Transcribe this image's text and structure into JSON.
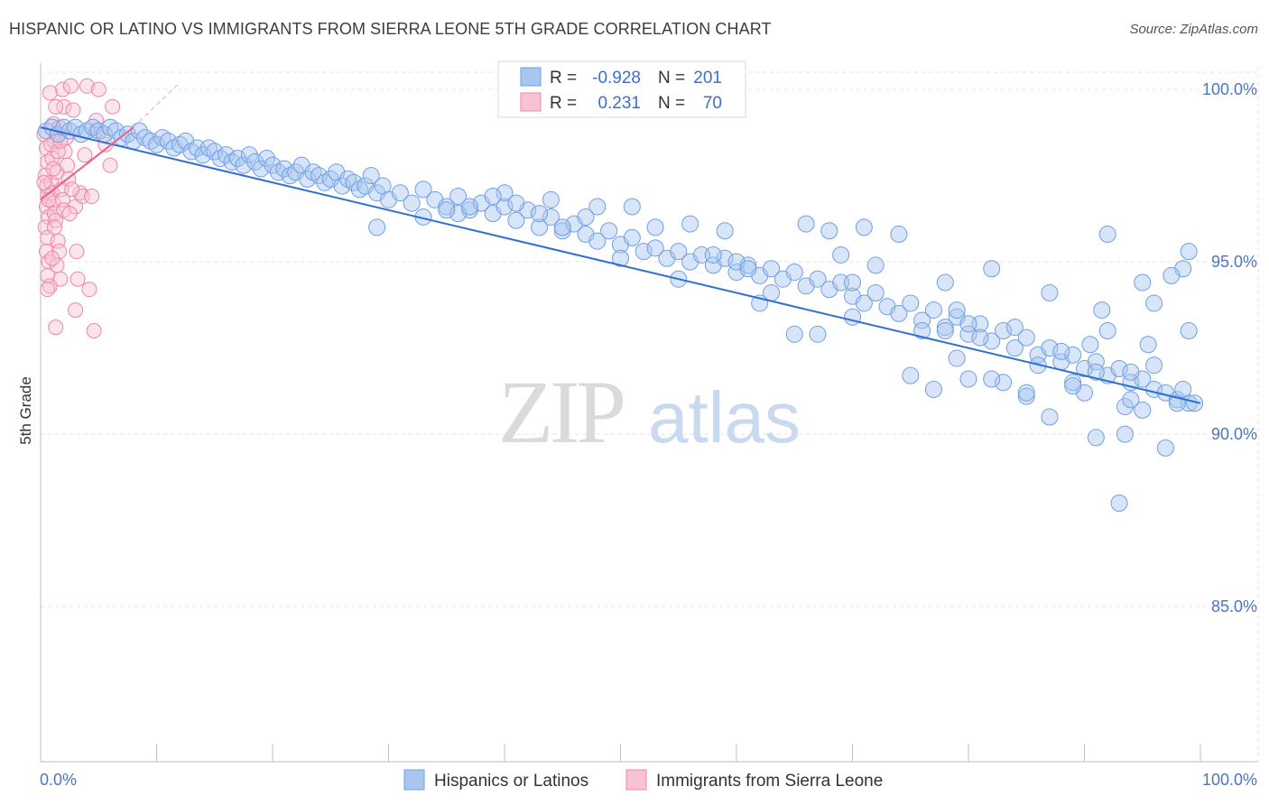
{
  "title": "HISPANIC OR LATINO VS IMMIGRANTS FROM SIERRA LEONE 5TH GRADE CORRELATION CHART",
  "source": "Source: ZipAtlas.com",
  "watermark": {
    "zip": "ZIP",
    "atlas": "atlas"
  },
  "colors": {
    "blue": "#6f9fe6",
    "blue_fill": "#a9c6f0",
    "blue_line": "#2f6fd2",
    "pink": "#ef86a8",
    "pink_fill": "#f7c3d4",
    "pink_line": "#e9608c",
    "tick_text": "#4a76c2"
  },
  "legend": {
    "r_label": "R =",
    "n_label": "N =",
    "rows": [
      {
        "r": "-0.928",
        "n": "201"
      },
      {
        "r": "0.231",
        "n": "70"
      }
    ]
  },
  "chart_data": {
    "type": "scatter",
    "xlabel": "",
    "ylabel": "5th Grade",
    "x_tick_labels": [
      "0.0%",
      "100.0%"
    ],
    "y_tick_labels": [
      "100.0%",
      "95.0%",
      "90.0%",
      "85.0%"
    ],
    "y_ticks": [
      100,
      95,
      90,
      85
    ],
    "xlim": [
      0,
      100
    ],
    "ylim": [
      80.5,
      100.5
    ],
    "grid": true,
    "legend_position": "top-center",
    "series": [
      {
        "name": "Hispanics or Latinos",
        "color": "#6f9fe6",
        "trend": {
          "x": [
            0,
            100
          ],
          "y": [
            98.9,
            90.9
          ]
        },
        "points": [
          [
            0.5,
            98.8
          ],
          [
            1,
            98.9
          ],
          [
            1.5,
            98.7
          ],
          [
            2,
            98.9
          ],
          [
            2.5,
            98.8
          ],
          [
            3,
            98.9
          ],
          [
            3.5,
            98.7
          ],
          [
            4,
            98.8
          ],
          [
            4.5,
            98.9
          ],
          [
            5,
            98.8
          ],
          [
            5.5,
            98.7
          ],
          [
            6,
            98.9
          ],
          [
            6.5,
            98.8
          ],
          [
            7,
            98.6
          ],
          [
            7.5,
            98.7
          ],
          [
            8,
            98.5
          ],
          [
            8.5,
            98.8
          ],
          [
            9,
            98.6
          ],
          [
            9.5,
            98.5
          ],
          [
            10,
            98.4
          ],
          [
            10.5,
            98.6
          ],
          [
            11,
            98.5
          ],
          [
            11.5,
            98.3
          ],
          [
            12,
            98.4
          ],
          [
            12.5,
            98.5
          ],
          [
            13,
            98.2
          ],
          [
            13.5,
            98.3
          ],
          [
            14,
            98.1
          ],
          [
            14.5,
            98.3
          ],
          [
            15,
            98.2
          ],
          [
            15.5,
            98.0
          ],
          [
            16,
            98.1
          ],
          [
            16.5,
            97.9
          ],
          [
            17,
            98.0
          ],
          [
            17.5,
            97.8
          ],
          [
            18,
            98.1
          ],
          [
            18.5,
            97.9
          ],
          [
            19,
            97.7
          ],
          [
            19.5,
            98.0
          ],
          [
            20,
            97.8
          ],
          [
            20.5,
            97.6
          ],
          [
            21,
            97.7
          ],
          [
            21.5,
            97.5
          ],
          [
            22,
            97.6
          ],
          [
            22.5,
            97.8
          ],
          [
            23,
            97.4
          ],
          [
            23.5,
            97.6
          ],
          [
            24,
            97.5
          ],
          [
            24.5,
            97.3
          ],
          [
            25,
            97.4
          ],
          [
            25.5,
            97.6
          ],
          [
            26,
            97.2
          ],
          [
            26.5,
            97.4
          ],
          [
            27,
            97.3
          ],
          [
            27.5,
            97.1
          ],
          [
            28,
            97.2
          ],
          [
            28.5,
            97.5
          ],
          [
            29,
            97.0
          ],
          [
            29.5,
            97.2
          ],
          [
            30,
            96.8
          ],
          [
            31,
            97.0
          ],
          [
            32,
            96.7
          ],
          [
            33,
            97.1
          ],
          [
            34,
            96.8
          ],
          [
            35,
            96.6
          ],
          [
            36,
            96.9
          ],
          [
            37,
            96.5
          ],
          [
            38,
            96.7
          ],
          [
            39,
            96.4
          ],
          [
            40,
            96.6
          ],
          [
            41,
            96.2
          ],
          [
            42,
            96.5
          ],
          [
            43,
            96.0
          ],
          [
            44,
            96.3
          ],
          [
            45,
            95.9
          ],
          [
            46,
            96.1
          ],
          [
            47,
            95.8
          ],
          [
            48,
            95.6
          ],
          [
            49,
            95.9
          ],
          [
            50,
            95.5
          ],
          [
            51,
            95.7
          ],
          [
            52,
            95.3
          ],
          [
            53,
            95.4
          ],
          [
            54,
            95.1
          ],
          [
            55,
            95.3
          ],
          [
            56,
            95.0
          ],
          [
            57,
            95.2
          ],
          [
            58,
            94.9
          ],
          [
            59,
            95.1
          ],
          [
            60,
            94.7
          ],
          [
            61,
            94.9
          ],
          [
            62,
            94.6
          ],
          [
            63,
            94.8
          ],
          [
            64,
            94.5
          ],
          [
            65,
            94.7
          ],
          [
            66,
            94.3
          ],
          [
            67,
            94.5
          ],
          [
            68,
            94.2
          ],
          [
            69,
            94.4
          ],
          [
            70,
            94.0
          ],
          [
            71,
            93.8
          ],
          [
            72,
            94.1
          ],
          [
            73,
            93.7
          ],
          [
            74,
            93.5
          ],
          [
            75,
            93.8
          ],
          [
            76,
            93.3
          ],
          [
            77,
            93.6
          ],
          [
            78,
            93.1
          ],
          [
            79,
            93.4
          ],
          [
            80,
            92.9
          ],
          [
            81,
            93.2
          ],
          [
            82,
            92.7
          ],
          [
            83,
            93.0
          ],
          [
            84,
            92.5
          ],
          [
            85,
            92.8
          ],
          [
            86,
            92.3
          ],
          [
            87,
            92.5
          ],
          [
            88,
            92.1
          ],
          [
            89,
            92.3
          ],
          [
            90,
            91.9
          ],
          [
            91,
            92.1
          ],
          [
            92,
            91.7
          ],
          [
            93,
            91.9
          ],
          [
            94,
            91.5
          ],
          [
            95,
            91.6
          ],
          [
            96,
            91.3
          ],
          [
            97,
            91.2
          ],
          [
            98,
            91.0
          ],
          [
            99,
            90.9
          ],
          [
            29,
            96.0
          ],
          [
            36,
            96.4
          ],
          [
            40,
            97.0
          ],
          [
            44,
            96.8
          ],
          [
            48,
            96.6
          ],
          [
            50,
            95.1
          ],
          [
            55,
            94.5
          ],
          [
            60,
            95.0
          ],
          [
            62,
            93.8
          ],
          [
            66,
            96.1
          ],
          [
            70,
            93.4
          ],
          [
            72,
            94.9
          ],
          [
            74,
            95.8
          ],
          [
            76,
            93.0
          ],
          [
            78,
            94.4
          ],
          [
            80,
            93.2
          ],
          [
            82,
            94.8
          ],
          [
            84,
            93.1
          ],
          [
            86,
            92.0
          ],
          [
            88,
            92.4
          ],
          [
            90,
            91.2
          ],
          [
            92,
            93.0
          ],
          [
            94,
            91.8
          ],
          [
            95,
            90.7
          ],
          [
            96,
            92.0
          ],
          [
            98,
            90.9
          ],
          [
            85,
            91.1
          ],
          [
            87,
            90.5
          ],
          [
            89,
            91.5
          ],
          [
            91,
            89.9
          ],
          [
            93,
            88.0
          ],
          [
            93.5,
            90.0
          ],
          [
            97,
            89.6
          ],
          [
            99,
            93.0
          ],
          [
            99.5,
            90.9
          ],
          [
            98.5,
            94.8
          ],
          [
            95.5,
            92.6
          ],
          [
            71,
            96.0
          ],
          [
            79,
            93.6
          ],
          [
            83,
            91.5
          ],
          [
            87,
            94.1
          ],
          [
            90.5,
            92.6
          ],
          [
            91.5,
            93.6
          ],
          [
            93.5,
            90.8
          ],
          [
            92,
            95.8
          ],
          [
            95,
            94.4
          ],
          [
            97.5,
            94.6
          ],
          [
            99,
            95.3
          ],
          [
            96,
            93.8
          ],
          [
            94,
            91.0
          ],
          [
            98.5,
            91.3
          ],
          [
            80,
            91.6
          ],
          [
            82,
            91.6
          ],
          [
            85,
            91.2
          ],
          [
            89,
            91.4
          ],
          [
            91,
            91.8
          ],
          [
            75,
            91.7
          ],
          [
            77,
            91.3
          ],
          [
            79,
            92.2
          ],
          [
            81,
            92.8
          ],
          [
            78,
            93.0
          ],
          [
            65,
            92.9
          ],
          [
            67,
            92.9
          ],
          [
            69,
            95.2
          ],
          [
            70,
            94.4
          ],
          [
            68,
            95.9
          ],
          [
            58,
            95.2
          ],
          [
            56,
            96.1
          ],
          [
            59,
            95.9
          ],
          [
            61,
            94.8
          ],
          [
            63,
            94.1
          ],
          [
            53,
            96.0
          ],
          [
            51,
            96.6
          ],
          [
            47,
            96.3
          ],
          [
            45,
            96.0
          ],
          [
            43,
            96.4
          ],
          [
            41,
            96.7
          ],
          [
            39,
            96.9
          ],
          [
            37,
            96.6
          ],
          [
            35,
            96.5
          ],
          [
            33,
            96.3
          ]
        ]
      },
      {
        "name": "Immigrants from Sierra Leone",
        "color": "#ef86a8",
        "trend": {
          "x": [
            0,
            8
          ],
          "y": [
            96.8,
            98.9
          ]
        },
        "trend_extension": {
          "x": [
            8,
            12
          ],
          "y": [
            98.9,
            100.2
          ]
        },
        "points": [
          [
            0.3,
            98.7
          ],
          [
            0.5,
            98.3
          ],
          [
            0.6,
            97.9
          ],
          [
            0.4,
            97.5
          ],
          [
            0.5,
            97.2
          ],
          [
            0.6,
            96.9
          ],
          [
            0.5,
            96.6
          ],
          [
            0.7,
            96.3
          ],
          [
            0.4,
            96.0
          ],
          [
            0.6,
            95.7
          ],
          [
            0.5,
            95.3
          ],
          [
            0.7,
            95.0
          ],
          [
            0.6,
            94.6
          ],
          [
            0.8,
            94.3
          ],
          [
            0.9,
            97.3
          ],
          [
            1.0,
            97.0
          ],
          [
            1.1,
            96.7
          ],
          [
            1.2,
            96.4
          ],
          [
            1.0,
            98.0
          ],
          [
            1.2,
            98.5
          ],
          [
            1.4,
            97.6
          ],
          [
            1.3,
            96.2
          ],
          [
            1.5,
            95.6
          ],
          [
            1.6,
            95.3
          ],
          [
            1.4,
            94.9
          ],
          [
            1.7,
            94.5
          ],
          [
            1.3,
            93.1
          ],
          [
            1.8,
            97.1
          ],
          [
            1.9,
            96.8
          ],
          [
            2.0,
            96.5
          ],
          [
            2.1,
            98.2
          ],
          [
            2.2,
            98.6
          ],
          [
            2.0,
            99.5
          ],
          [
            2.3,
            97.8
          ],
          [
            2.4,
            97.4
          ],
          [
            1.9,
            100.0
          ],
          [
            2.6,
            100.1
          ],
          [
            2.8,
            99.4
          ],
          [
            3.0,
            96.6
          ],
          [
            3.2,
            94.5
          ],
          [
            3.0,
            93.6
          ],
          [
            3.4,
            97.0
          ],
          [
            3.6,
            96.9
          ],
          [
            3.8,
            98.1
          ],
          [
            4.0,
            100.1
          ],
          [
            4.2,
            94.2
          ],
          [
            4.4,
            96.9
          ],
          [
            4.6,
            93.0
          ],
          [
            4.8,
            98.8
          ],
          [
            5.0,
            100.0
          ],
          [
            5.6,
            98.4
          ],
          [
            6.0,
            97.8
          ],
          [
            6.2,
            99.5
          ],
          [
            0.8,
            99.9
          ],
          [
            1.1,
            99.0
          ],
          [
            1.6,
            98.9
          ],
          [
            0.9,
            98.4
          ],
          [
            1.5,
            98.2
          ],
          [
            1.1,
            97.7
          ],
          [
            0.7,
            96.8
          ],
          [
            1.2,
            96.0
          ],
          [
            0.6,
            94.2
          ],
          [
            1.0,
            95.1
          ],
          [
            2.5,
            96.4
          ],
          [
            3.1,
            95.3
          ],
          [
            2.7,
            97.1
          ],
          [
            1.7,
            98.5
          ],
          [
            1.3,
            99.5
          ],
          [
            0.3,
            97.3
          ],
          [
            4.8,
            99.1
          ]
        ]
      }
    ]
  },
  "bottom_legend": [
    "Hispanics or Latinos",
    "Immigrants from Sierra Leone"
  ]
}
